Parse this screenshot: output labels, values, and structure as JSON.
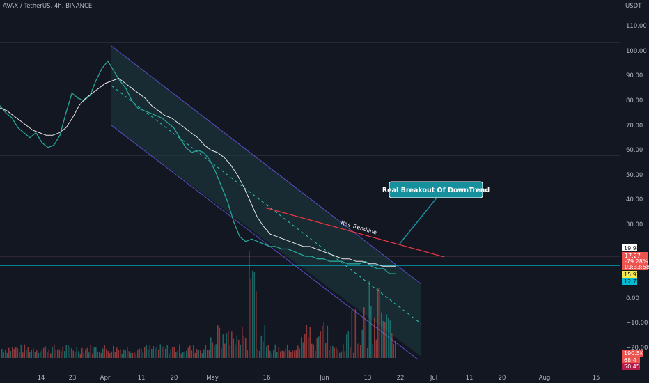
{
  "header": {
    "symbol": "AVAX / TetherUS, 4h, BINANCE",
    "currency": "USDT"
  },
  "price_tags": {
    "high_level": "19.98",
    "last": "17.27",
    "change": "-79.28%",
    "countdown": "03:33:58",
    "channel_mid": "15.91",
    "horizontal": "12.72"
  },
  "volume_tags": {
    "v1": "190.5K",
    "v2": "68.4",
    "v3": "50.45"
  },
  "annotations": {
    "callout": "Real Breakout Of DownTrend",
    "trendline": "Res Trendline"
  },
  "colors": {
    "background": "#131722",
    "up": "#26a69a",
    "down": "#ef5350",
    "ma": "#e8e8e8",
    "channel": "#5c4fc9",
    "channel_fill": "#1d3d3f",
    "midline": "#2ec4b6",
    "horizontal": "#00bcd4",
    "resistance": "#f23645",
    "callout": "#17909e"
  },
  "chart_data": {
    "type": "line",
    "title": "AVAX / TetherUS, 4h, BINANCE",
    "ylabel": "USDT",
    "y_ticks": [
      "110.00",
      "100.00",
      "90.00",
      "80.00",
      "70.00",
      "60.00",
      "50.00",
      "40.00",
      "30.00",
      "0.00",
      "−10.00",
      "−20.00"
    ],
    "x_ticks": [
      "14",
      "23",
      "Apr",
      "11",
      "20",
      "May",
      "16",
      "Jun",
      "13",
      "22",
      "Jul",
      "11",
      "20",
      "Aug",
      "15"
    ],
    "ylim": [
      -22,
      114
    ],
    "grid": false,
    "series": [
      {
        "values": [
          85,
          82,
          80,
          76,
          74,
          72,
          74,
          70,
          68,
          69,
          73,
          82,
          90,
          88,
          87,
          89,
          95,
          100,
          103,
          99,
          95,
          92,
          87,
          84,
          83,
          82,
          81,
          80,
          78,
          76,
          72,
          68,
          66,
          67,
          66,
          63,
          58,
          52,
          46,
          38,
          32,
          30,
          31,
          30,
          29,
          28,
          28,
          27,
          27,
          26,
          25,
          24,
          24,
          23,
          23,
          22,
          22,
          22,
          21,
          21,
          21,
          22,
          20,
          19,
          19,
          17,
          17
        ]
      },
      {
        "values": [
          84,
          83,
          81,
          79,
          77,
          75,
          74,
          73,
          73,
          74,
          76,
          80,
          85,
          88,
          90,
          92,
          94,
          95,
          96,
          94,
          92,
          90,
          88,
          85,
          83,
          81,
          80,
          78,
          76,
          74,
          72,
          69,
          67,
          66,
          64,
          61,
          57,
          52,
          46,
          40,
          36,
          33,
          32,
          31,
          30,
          29,
          28,
          28,
          27,
          26,
          25,
          24,
          23,
          23,
          22,
          22,
          21,
          21,
          20,
          20,
          20
        ]
      }
    ]
  }
}
